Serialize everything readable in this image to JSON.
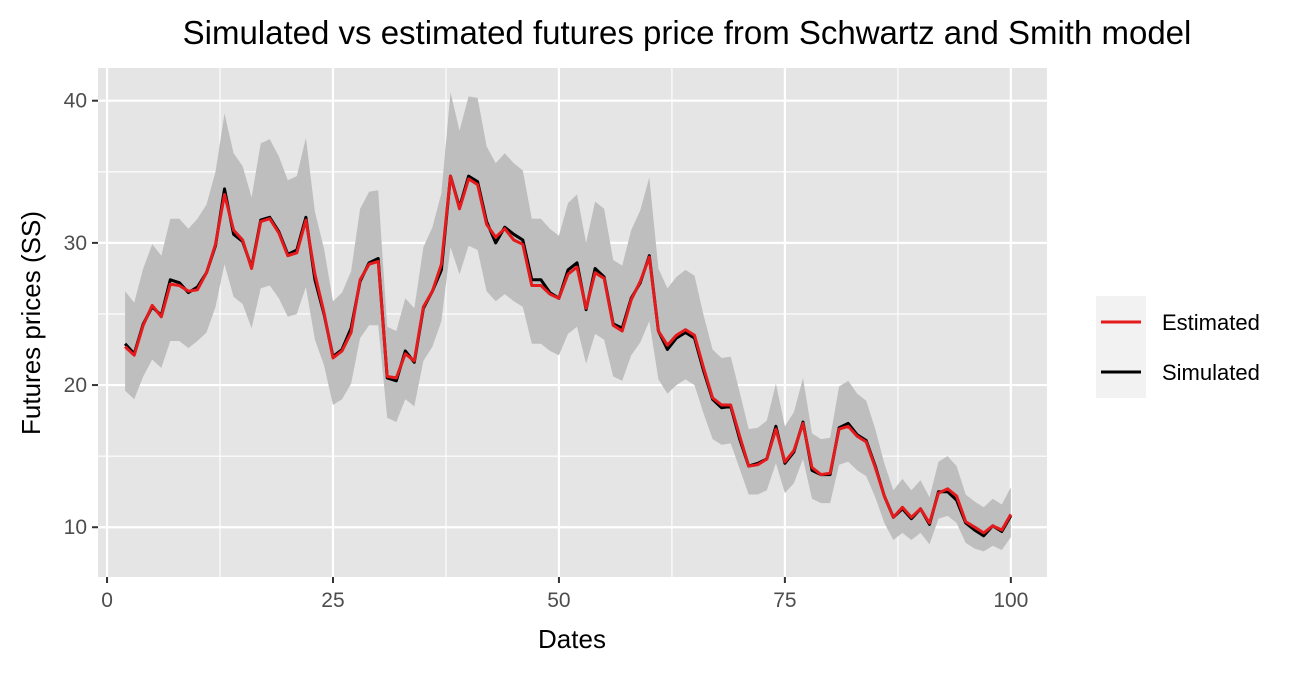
{
  "chart_data": {
    "type": "line",
    "title": "Simulated vs estimated futures price from Schwartz and Smith model",
    "xlabel": "Dates",
    "ylabel": "Futures prices (SS)",
    "xlim": [
      -1,
      104
    ],
    "ylim": [
      6.5,
      42.3
    ],
    "x_ticks": [
      0,
      25,
      50,
      75,
      100
    ],
    "y_ticks": [
      10,
      20,
      30,
      40
    ],
    "grid": true,
    "legend_position": "right",
    "colors": {
      "panel": "#E5E5E5",
      "grid": "#FFFFFF",
      "ribbon": "#BEBEBE",
      "estimated": "#E41A1C",
      "simulated": "#000000",
      "text": "#4D4D4D",
      "legend_bg": "#F2F2F2"
    },
    "x": [
      2,
      3,
      4,
      5,
      6,
      7,
      8,
      9,
      10,
      11,
      12,
      13,
      14,
      15,
      16,
      17,
      18,
      19,
      20,
      21,
      22,
      23,
      24,
      25,
      26,
      27,
      28,
      29,
      30,
      31,
      32,
      33,
      34,
      35,
      36,
      37,
      38,
      39,
      40,
      41,
      42,
      43,
      44,
      45,
      46,
      47,
      48,
      49,
      50,
      51,
      52,
      53,
      54,
      55,
      56,
      57,
      58,
      59,
      60,
      61,
      62,
      63,
      64,
      65,
      66,
      67,
      68,
      69,
      70,
      71,
      72,
      73,
      74,
      75,
      76,
      77,
      78,
      79,
      80,
      81,
      82,
      83,
      84,
      85,
      86,
      87,
      88,
      89,
      90,
      91,
      92,
      93,
      94,
      95,
      96,
      97,
      98,
      99,
      100
    ],
    "series": [
      {
        "name": "Simulated",
        "values": [
          22.9,
          22.2,
          24.3,
          25.5,
          24.9,
          27.4,
          27.2,
          26.5,
          26.9,
          27.9,
          29.8,
          33.8,
          30.6,
          30.1,
          28.3,
          31.6,
          31.8,
          30.8,
          29.2,
          29.5,
          31.8,
          27.4,
          25.0,
          22.0,
          22.5,
          24.0,
          27.3,
          28.6,
          28.9,
          20.5,
          20.3,
          22.4,
          21.6,
          25.4,
          26.6,
          28.1,
          34.7,
          32.5,
          34.7,
          34.3,
          31.5,
          30.0,
          31.1,
          30.6,
          30.2,
          27.4,
          27.4,
          26.5,
          26.1,
          28.1,
          28.6,
          25.3,
          28.2,
          27.6,
          24.3,
          24.0,
          26.1,
          27.2,
          29.1,
          23.8,
          22.5,
          23.3,
          23.7,
          23.3,
          21.0,
          19.0,
          18.4,
          18.5,
          16.2,
          14.3,
          14.5,
          14.8,
          17.1,
          14.5,
          15.3,
          17.4,
          14.0,
          13.7,
          13.7,
          17.0,
          17.3,
          16.5,
          16.1,
          14.3,
          12.2,
          10.7,
          11.3,
          10.6,
          11.3,
          10.2,
          12.5,
          12.5,
          11.9,
          10.3,
          9.8,
          9.4,
          10.1,
          9.7,
          10.8
        ]
      },
      {
        "name": "Estimated",
        "values": [
          22.7,
          22.1,
          24.2,
          25.6,
          24.8,
          27.1,
          27.0,
          26.6,
          26.7,
          27.9,
          29.9,
          33.4,
          30.9,
          30.2,
          28.2,
          31.5,
          31.7,
          30.7,
          29.1,
          29.3,
          31.6,
          27.8,
          25.1,
          21.9,
          22.4,
          23.7,
          27.4,
          28.5,
          28.7,
          20.6,
          20.5,
          22.2,
          21.7,
          25.5,
          26.6,
          28.5,
          34.7,
          32.4,
          34.5,
          34.1,
          31.3,
          30.4,
          31.0,
          30.2,
          29.9,
          27.0,
          27.0,
          26.4,
          26.1,
          27.8,
          28.3,
          25.4,
          27.9,
          27.5,
          24.2,
          23.8,
          26.0,
          27.3,
          29.0,
          23.8,
          22.8,
          23.5,
          23.9,
          23.5,
          21.2,
          19.1,
          18.6,
          18.6,
          16.4,
          14.3,
          14.4,
          14.8,
          16.9,
          14.6,
          15.4,
          17.3,
          14.2,
          13.7,
          13.8,
          16.9,
          17.1,
          16.4,
          16.0,
          14.2,
          12.2,
          10.7,
          11.4,
          10.7,
          11.3,
          10.3,
          12.4,
          12.7,
          12.2,
          10.4,
          10.0,
          9.6,
          10.1,
          9.8,
          10.9
        ]
      }
    ],
    "ribbon": {
      "lower": [
        19.6,
        19.0,
        20.6,
        21.8,
        21.2,
        23.1,
        23.1,
        22.6,
        23.1,
        23.7,
        25.5,
        28.5,
        26.2,
        25.7,
        24.0,
        26.8,
        27.0,
        26.1,
        24.8,
        25.0,
        26.9,
        23.2,
        21.4,
        18.6,
        19.0,
        20.1,
        23.3,
        24.2,
        24.2,
        17.7,
        17.4,
        19.0,
        18.5,
        21.7,
        22.7,
        24.5,
        29.7,
        27.8,
        29.8,
        29.5,
        26.6,
        25.9,
        26.4,
        25.9,
        25.5,
        22.9,
        22.9,
        22.4,
        22.1,
        23.6,
        24.1,
        21.5,
        23.6,
        23.2,
        20.6,
        20.3,
        22.1,
        23.0,
        24.5,
        20.4,
        19.4,
        20.0,
        20.4,
        20.0,
        18.0,
        16.2,
        15.8,
        15.9,
        14.1,
        12.3,
        12.3,
        12.6,
        14.5,
        12.4,
        13.1,
        14.8,
        12.0,
        11.7,
        11.7,
        14.4,
        14.6,
        14.0,
        13.6,
        12.1,
        10.3,
        9.1,
        9.6,
        9.1,
        9.6,
        8.8,
        10.6,
        10.8,
        10.3,
        8.9,
        8.5,
        8.3,
        8.7,
        8.4,
        9.3
      ],
      "upper": [
        26.6,
        25.8,
        28.2,
        29.9,
        29.1,
        31.7,
        31.7,
        31.0,
        31.7,
        32.7,
        35.0,
        39.1,
        36.3,
        35.4,
        33.2,
        37.0,
        37.3,
        36.1,
        34.4,
        34.7,
        37.4,
        32.2,
        29.6,
        25.9,
        26.5,
        28.0,
        32.4,
        33.6,
        33.7,
        24.1,
        23.8,
        26.1,
        25.4,
        29.7,
        31.1,
        33.5,
        40.6,
        37.9,
        40.3,
        40.2,
        36.8,
        35.6,
        36.3,
        35.6,
        35.1,
        31.7,
        31.7,
        31.0,
        30.5,
        32.8,
        33.4,
        30.0,
        32.9,
        32.4,
        28.8,
        28.4,
        30.9,
        32.3,
        34.6,
        28.2,
        26.8,
        27.6,
        28.1,
        27.7,
        24.9,
        22.5,
        21.9,
        22.0,
        19.5,
        16.9,
        17.0,
        17.5,
        20.1,
        17.1,
        18.1,
        20.5,
        16.6,
        16.2,
        16.3,
        19.9,
        20.3,
        19.4,
        18.9,
        16.9,
        14.5,
        12.6,
        13.4,
        12.6,
        13.3,
        12.1,
        14.6,
        15.0,
        14.3,
        12.3,
        11.8,
        11.4,
        12.0,
        11.6,
        12.8
      ]
    }
  },
  "legend": {
    "items": [
      {
        "label": "Estimated",
        "color": "#E41A1C"
      },
      {
        "label": "Simulated",
        "color": "#000000"
      }
    ]
  }
}
